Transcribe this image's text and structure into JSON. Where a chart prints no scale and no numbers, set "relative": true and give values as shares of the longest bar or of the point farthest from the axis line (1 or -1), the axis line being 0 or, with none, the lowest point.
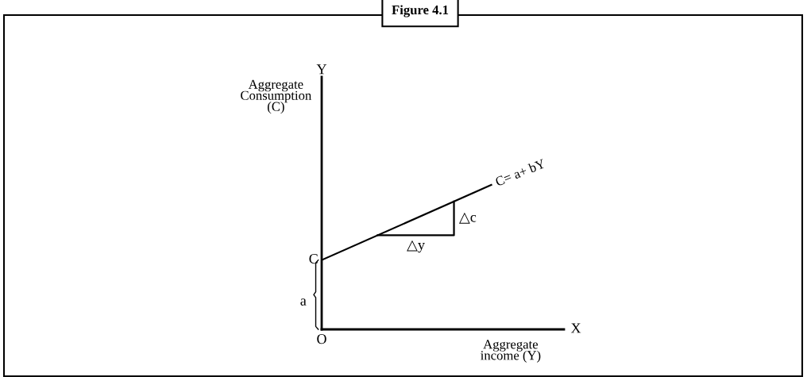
{
  "chart_data": {
    "type": "line",
    "title": "Figure 4.1",
    "xlabel": "Aggregate\nincome (Y)",
    "categories": [
      null,
      null
    ],
    "relative": true,
    "series": [
      {
        "name": "C= a+ bY",
        "color": "#000000",
        "values": [
          0.48,
          1
        ]
      }
    ],
    "annotations": [
      "Y",
      "X",
      "O",
      "C",
      "a",
      "△c",
      "△y",
      "Aggregate\nConsumption\n(C)"
    ],
    "legend": false
  }
}
